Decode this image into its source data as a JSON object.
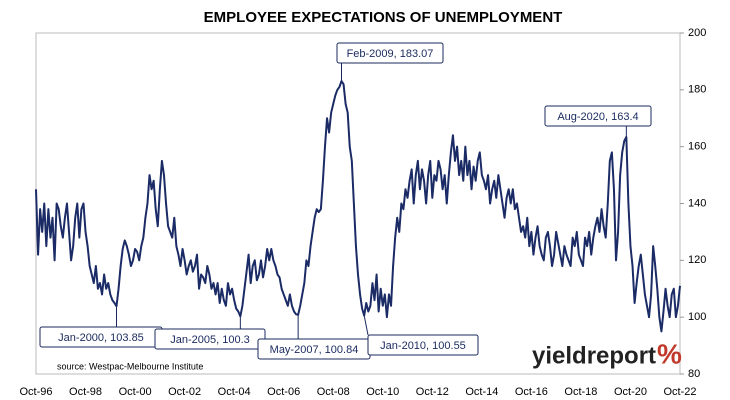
{
  "chart_data": {
    "type": "line",
    "title": "EMPLOYEE EXPECTATIONS OF UNEMPLOYMENT",
    "source": "source: Westpac-Melbourne Institute",
    "brand": "yieldreport",
    "brand_mark": "%",
    "color": "#1b2b66",
    "ylim": [
      80,
      200
    ],
    "yticks": [
      80,
      100,
      120,
      140,
      160,
      180,
      200
    ],
    "annotations": [
      {
        "text": "Jan-2000, 103.85"
      },
      {
        "text": "Jan-2005, 100.3"
      },
      {
        "text": "May-2007, 100.84"
      },
      {
        "text": "Feb-2009, 183.07"
      },
      {
        "text": "Jan-2010, 100.55"
      },
      {
        "text": "Aug-2020, 163.4"
      }
    ],
    "categories": [
      "Oct-96",
      null,
      null,
      null,
      null,
      null,
      null,
      null,
      null,
      null,
      null,
      null,
      null,
      null,
      null,
      null,
      null,
      null,
      null,
      null,
      null,
      null,
      null,
      null,
      "Oct-98",
      null,
      null,
      null,
      null,
      null,
      null,
      null,
      null,
      null,
      null,
      null,
      null,
      null,
      null,
      null,
      null,
      null,
      null,
      null,
      null,
      null,
      null,
      null,
      "Oct-00",
      null,
      null,
      null,
      null,
      null,
      null,
      null,
      null,
      null,
      null,
      null,
      null,
      null,
      null,
      null,
      null,
      null,
      null,
      null,
      null,
      null,
      null,
      null,
      "Oct-02",
      null,
      null,
      null,
      null,
      null,
      null,
      null,
      null,
      null,
      null,
      null,
      null,
      null,
      null,
      null,
      null,
      null,
      null,
      null,
      null,
      null,
      null,
      null,
      "Oct-04",
      null,
      null,
      null,
      null,
      null,
      null,
      null,
      null,
      null,
      null,
      null,
      null,
      null,
      null,
      null,
      null,
      null,
      null,
      null,
      null,
      null,
      null,
      null,
      "Oct-06",
      null,
      null,
      null,
      null,
      null,
      null,
      null,
      null,
      null,
      null,
      null,
      null,
      null,
      null,
      null,
      null,
      null,
      null,
      null,
      null,
      null,
      null,
      null,
      "Oct-08",
      null,
      null,
      null,
      null,
      null,
      null,
      null,
      null,
      null,
      null,
      null,
      null,
      null,
      null,
      null,
      null,
      null,
      null,
      null,
      null,
      null,
      null,
      null,
      "Oct-10",
      null,
      null,
      null,
      null,
      null,
      null,
      null,
      null,
      null,
      null,
      null,
      null,
      null,
      null,
      null,
      null,
      null,
      null,
      null,
      null,
      null,
      null,
      null,
      "Oct-12",
      null,
      null,
      null,
      null,
      null,
      null,
      null,
      null,
      null,
      null,
      null,
      null,
      null,
      null,
      null,
      null,
      null,
      null,
      null,
      null,
      null,
      null,
      null,
      "Oct-14",
      null,
      null,
      null,
      null,
      null,
      null,
      null,
      null,
      null,
      null,
      null,
      null,
      null,
      null,
      null,
      null,
      null,
      null,
      null,
      null,
      null,
      null,
      null,
      "Oct-16",
      null,
      null,
      null,
      null,
      null,
      null,
      null,
      null,
      null,
      null,
      null,
      null,
      null,
      null,
      null,
      null,
      null,
      null,
      null,
      null,
      null,
      null,
      null,
      "Oct-18",
      null,
      null,
      null,
      null,
      null,
      null,
      null,
      null,
      null,
      null,
      null,
      null,
      null,
      null,
      null,
      null,
      null,
      null,
      null,
      null,
      null,
      null,
      null,
      "Oct-20",
      null,
      null,
      null,
      null,
      null,
      null,
      null,
      null,
      null,
      null,
      null,
      null,
      null,
      null,
      null,
      null,
      null,
      null,
      null,
      null,
      null,
      null,
      null,
      "Oct-22"
    ],
    "values": [
      145,
      122,
      138,
      130,
      140,
      125,
      138,
      128,
      135,
      120,
      140,
      138,
      132,
      128,
      135,
      140,
      130,
      120,
      125,
      135,
      140,
      128,
      138,
      140,
      130,
      125,
      118,
      115,
      112,
      118,
      110,
      112,
      108,
      115,
      110,
      112,
      108,
      106,
      105,
      103.85,
      110,
      118,
      124,
      127,
      125,
      122,
      118,
      120,
      124,
      123,
      120,
      125,
      128,
      135,
      140,
      150,
      145,
      148,
      138,
      132,
      145,
      155,
      150,
      140,
      132,
      130,
      128,
      135,
      125,
      122,
      118,
      124,
      120,
      115,
      118,
      120,
      116,
      118,
      122,
      110,
      115,
      114,
      112,
      118,
      115,
      110,
      112,
      108,
      112,
      105,
      110,
      106,
      104,
      112,
      108,
      110,
      106,
      103,
      102,
      100.3,
      104,
      110,
      116,
      122,
      112,
      118,
      120,
      113,
      115,
      120,
      114,
      118,
      124,
      120,
      124,
      120,
      118,
      115,
      114,
      110,
      108,
      106,
      104,
      108,
      104,
      102,
      101,
      100.84,
      104,
      108,
      112,
      120,
      118,
      125,
      130,
      135,
      138,
      137,
      138,
      148,
      160,
      170,
      165,
      172,
      175,
      178,
      180,
      181,
      183.07,
      182,
      175,
      172,
      160,
      155,
      140,
      125,
      115,
      108,
      103,
      100.55,
      105,
      102,
      104,
      112,
      106,
      115,
      102,
      110,
      104,
      108,
      100,
      108,
      104,
      118,
      128,
      135,
      130,
      140,
      138,
      145,
      142,
      148,
      152,
      140,
      150,
      155,
      145,
      152,
      148,
      140,
      150,
      155,
      142,
      150,
      148,
      155,
      152,
      145,
      150,
      140,
      150,
      158,
      164,
      155,
      160,
      150,
      155,
      148,
      160,
      150,
      155,
      145,
      153,
      148,
      155,
      158,
      150,
      148,
      145,
      150,
      140,
      145,
      148,
      142,
      150,
      145,
      140,
      135,
      142,
      145,
      140,
      145,
      138,
      140,
      135,
      130,
      132,
      128,
      135,
      125,
      130,
      122,
      128,
      132,
      125,
      122,
      120,
      128,
      130,
      125,
      118,
      122,
      130,
      126,
      122,
      118,
      125,
      122,
      120,
      118,
      128,
      125,
      130,
      122,
      120,
      118,
      128,
      125,
      130,
      122,
      128,
      132,
      135,
      130,
      138,
      132,
      128,
      140,
      155,
      158,
      145,
      120,
      130,
      150,
      158,
      162,
      163.4,
      140,
      125,
      118,
      105,
      112,
      118,
      122,
      115,
      108,
      104,
      100,
      108,
      125,
      118,
      110,
      100,
      95,
      102,
      110,
      104,
      100,
      108,
      110,
      100,
      104,
      111
    ]
  }
}
